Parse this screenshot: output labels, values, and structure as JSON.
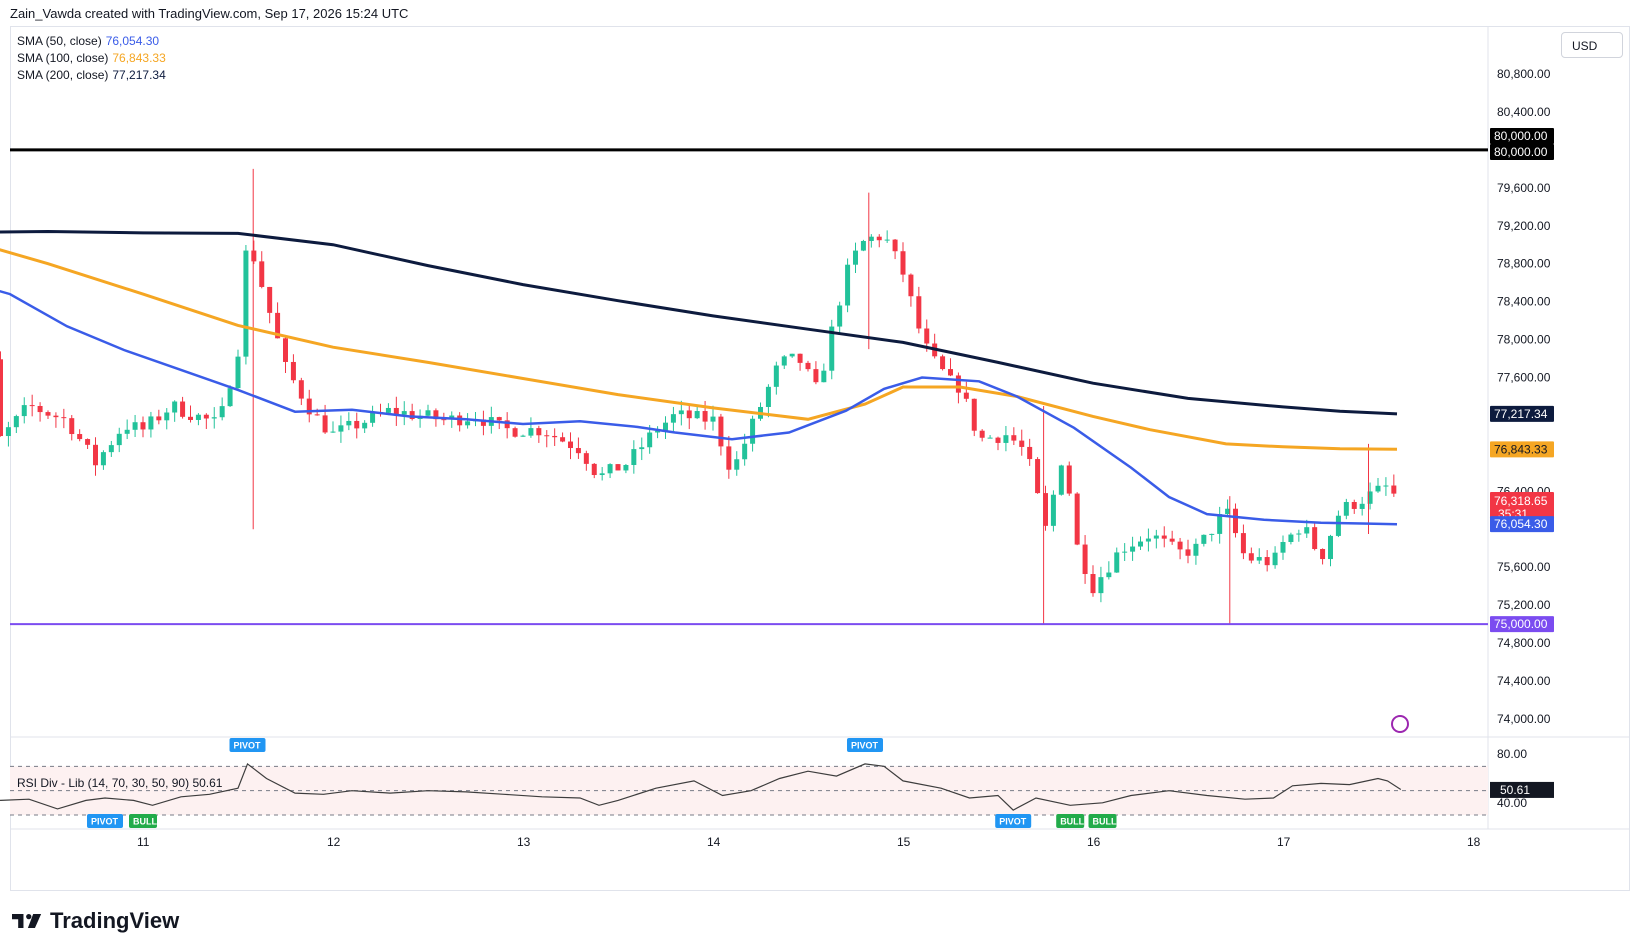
{
  "header": {
    "text": "Zain_Vawda created with TradingView.com, Sep 17, 2026 15:24 UTC"
  },
  "currency": "USD",
  "legend": {
    "sma50": {
      "label": "SMA (50, close)",
      "value": "76,054.30",
      "color": "#3a5ce8"
    },
    "sma100": {
      "label": "SMA (100, close)",
      "value": "76,843.33",
      "color": "#f5a623"
    },
    "sma200": {
      "label": "SMA (200, close)",
      "value": "77,217.34",
      "color": "#0d1b3e"
    }
  },
  "rsi_legend": {
    "label": "RSI Div - Lib (14, 70, 30, 50, 90)",
    "value": "50.61"
  },
  "price_tags": {
    "level80k_a": "80,000.00",
    "level80k_b": "80,000.00",
    "sma200": "77,217.34",
    "sma100": "76,843.33",
    "last": "76,318.65",
    "countdown": "35:31",
    "sma50": "76,054.30",
    "level75k": "75,000.00",
    "rsi": "50.61"
  },
  "colors": {
    "up": "#22c29a",
    "down": "#f23645",
    "sma50": "#3a5ce8",
    "sma100": "#f5a623",
    "sma200": "#0d1b3e",
    "res": "#000000",
    "sup": "#7b4cf0",
    "rsi": "#3d3d3d"
  },
  "footer": {
    "brand": "TradingView"
  },
  "chart_data": {
    "type": "candlestick",
    "title": "",
    "x_ticks": [
      "11",
      "12",
      "13",
      "14",
      "15",
      "16",
      "17",
      "18"
    ],
    "y_ticks": [
      "80,800.00",
      "80,400.00",
      "79,600.00",
      "79,200.00",
      "78,800.00",
      "78,400.00",
      "78,000.00",
      "77,600.00",
      "76,400.00",
      "75,600.00",
      "75,200.00",
      "74,800.00",
      "74,400.00",
      "74,000.00"
    ],
    "ylim": [
      73950,
      81050
    ],
    "horizontal_levels": [
      80000,
      75000
    ],
    "rsi": {
      "ylim": [
        30,
        90
      ],
      "levels": [
        70,
        50,
        30
      ],
      "ticks": [
        "80.00",
        "40.00"
      ],
      "markers": [
        {
          "text": "PIVOT",
          "day": 11.55,
          "pos": "top"
        },
        {
          "text": "PIVOT",
          "day": 14.8,
          "pos": "top"
        },
        {
          "text": "PIVOT",
          "day": 10.8,
          "pos": "bottom"
        },
        {
          "text": "BULL",
          "day": 11.0,
          "pos": "bottom"
        },
        {
          "text": "PIVOT",
          "day": 15.58,
          "pos": "bottom"
        },
        {
          "text": "BULL",
          "day": 15.88,
          "pos": "bottom"
        },
        {
          "text": "BULL",
          "day": 16.05,
          "pos": "bottom"
        }
      ],
      "path": [
        [
          10.0,
          42
        ],
        [
          10.15,
          45
        ],
        [
          10.25,
          42
        ],
        [
          10.4,
          43
        ],
        [
          10.55,
          35
        ],
        [
          10.7,
          42
        ],
        [
          10.8,
          44
        ],
        [
          10.95,
          42
        ],
        [
          11.05,
          38
        ],
        [
          11.2,
          45
        ],
        [
          11.35,
          47
        ],
        [
          11.5,
          52
        ],
        [
          11.55,
          72
        ],
        [
          11.65,
          60
        ],
        [
          11.8,
          48
        ],
        [
          11.95,
          47
        ],
        [
          12.1,
          50
        ],
        [
          12.3,
          48
        ],
        [
          12.5,
          50
        ],
        [
          12.7,
          49
        ],
        [
          12.9,
          47
        ],
        [
          13.1,
          45
        ],
        [
          13.3,
          44
        ],
        [
          13.4,
          38
        ],
        [
          13.5,
          42
        ],
        [
          13.7,
          52
        ],
        [
          13.9,
          58
        ],
        [
          14.05,
          46
        ],
        [
          14.2,
          50
        ],
        [
          14.35,
          60
        ],
        [
          14.5,
          66
        ],
        [
          14.65,
          62
        ],
        [
          14.8,
          72
        ],
        [
          14.9,
          70
        ],
        [
          15.0,
          58
        ],
        [
          15.2,
          52
        ],
        [
          15.35,
          44
        ],
        [
          15.5,
          46
        ],
        [
          15.58,
          34
        ],
        [
          15.7,
          44
        ],
        [
          15.88,
          38
        ],
        [
          16.05,
          40
        ],
        [
          16.2,
          46
        ],
        [
          16.4,
          50
        ],
        [
          16.6,
          46
        ],
        [
          16.8,
          43
        ],
        [
          16.95,
          44
        ],
        [
          17.05,
          54
        ],
        [
          17.2,
          56
        ],
        [
          17.35,
          55
        ],
        [
          17.5,
          60
        ],
        [
          17.55,
          58
        ],
        [
          17.62,
          51
        ]
      ]
    },
    "sma200_path": [
      [
        10.0,
        79130
      ],
      [
        10.5,
        79140
      ],
      [
        11.0,
        79125
      ],
      [
        11.5,
        79120
      ],
      [
        12.0,
        79000
      ],
      [
        12.5,
        78780
      ],
      [
        13.0,
        78580
      ],
      [
        13.5,
        78410
      ],
      [
        14.0,
        78250
      ],
      [
        14.5,
        78110
      ],
      [
        15.0,
        77970
      ],
      [
        15.5,
        77760
      ],
      [
        16.0,
        77540
      ],
      [
        16.5,
        77380
      ],
      [
        17.0,
        77290
      ],
      [
        17.3,
        77245
      ],
      [
        17.6,
        77217
      ]
    ],
    "sma100_path": [
      [
        10.0,
        79090
      ],
      [
        10.5,
        78800
      ],
      [
        11.0,
        78480
      ],
      [
        11.5,
        78150
      ],
      [
        12.0,
        77920
      ],
      [
        12.5,
        77760
      ],
      [
        13.0,
        77590
      ],
      [
        13.5,
        77420
      ],
      [
        14.0,
        77280
      ],
      [
        14.5,
        77160
      ],
      [
        14.8,
        77320
      ],
      [
        15.0,
        77500
      ],
      [
        15.3,
        77500
      ],
      [
        15.6,
        77400
      ],
      [
        16.0,
        77190
      ],
      [
        16.3,
        77050
      ],
      [
        16.7,
        76900
      ],
      [
        17.0,
        76870
      ],
      [
        17.3,
        76850
      ],
      [
        17.6,
        76843
      ]
    ],
    "sma50_path": [
      [
        10.0,
        78650
      ],
      [
        10.3,
        78480
      ],
      [
        10.6,
        78140
      ],
      [
        10.9,
        77890
      ],
      [
        11.2,
        77680
      ],
      [
        11.5,
        77470
      ],
      [
        11.8,
        77240
      ],
      [
        12.1,
        77260
      ],
      [
        12.4,
        77190
      ],
      [
        12.7,
        77160
      ],
      [
        13.0,
        77110
      ],
      [
        13.3,
        77140
      ],
      [
        13.6,
        77080
      ],
      [
        13.8,
        77020
      ],
      [
        14.1,
        76950
      ],
      [
        14.4,
        77020
      ],
      [
        14.7,
        77250
      ],
      [
        14.9,
        77480
      ],
      [
        15.1,
        77600
      ],
      [
        15.4,
        77560
      ],
      [
        15.6,
        77400
      ],
      [
        15.9,
        77070
      ],
      [
        16.2,
        76650
      ],
      [
        16.4,
        76340
      ],
      [
        16.6,
        76160
      ],
      [
        16.9,
        76100
      ],
      [
        17.2,
        76070
      ],
      [
        17.45,
        76060
      ],
      [
        17.6,
        76054
      ]
    ],
    "candles_desc": "approx. hourly candles; generated from a seeded price walk through key points",
    "walk": [
      [
        10.0,
        78300
      ],
      [
        10.2,
        77900
      ],
      [
        10.25,
        76950
      ],
      [
        10.4,
        77300
      ],
      [
        10.6,
        77150
      ],
      [
        10.75,
        76700
      ],
      [
        10.9,
        77100
      ],
      [
        11.0,
        77050
      ],
      [
        11.15,
        77300
      ],
      [
        11.4,
        77100
      ],
      [
        11.5,
        77900
      ],
      [
        11.55,
        79100
      ],
      [
        11.65,
        78400
      ],
      [
        11.75,
        77700
      ],
      [
        11.9,
        77200
      ],
      [
        12.0,
        77000
      ],
      [
        12.3,
        77250
      ],
      [
        12.6,
        77150
      ],
      [
        12.75,
        77200
      ],
      [
        12.9,
        77050
      ],
      [
        13.1,
        77050
      ],
      [
        13.3,
        76850
      ],
      [
        13.4,
        76550
      ],
      [
        13.55,
        76700
      ],
      [
        13.7,
        77050
      ],
      [
        13.8,
        77200
      ],
      [
        14.0,
        77150
      ],
      [
        14.1,
        76600
      ],
      [
        14.25,
        77300
      ],
      [
        14.35,
        77750
      ],
      [
        14.45,
        77800
      ],
      [
        14.55,
        77450
      ],
      [
        14.65,
        78300
      ],
      [
        14.72,
        78800
      ],
      [
        14.8,
        79050
      ],
      [
        14.9,
        79100
      ],
      [
        15.0,
        78700
      ],
      [
        15.1,
        78000
      ],
      [
        15.15,
        77800
      ],
      [
        15.25,
        77550
      ],
      [
        15.3,
        77500
      ],
      [
        15.4,
        76950
      ],
      [
        15.55,
        77000
      ],
      [
        15.65,
        76800
      ],
      [
        15.75,
        76000
      ],
      [
        15.82,
        76600
      ],
      [
        15.85,
        76900
      ],
      [
        15.9,
        75900
      ],
      [
        16.0,
        75400
      ],
      [
        16.15,
        75800
      ],
      [
        16.3,
        75950
      ],
      [
        16.45,
        75750
      ],
      [
        16.55,
        75800
      ],
      [
        16.7,
        76200
      ],
      [
        16.8,
        75700
      ],
      [
        16.95,
        75650
      ],
      [
        17.0,
        75850
      ],
      [
        17.1,
        76050
      ],
      [
        17.2,
        75700
      ],
      [
        17.3,
        76200
      ],
      [
        17.4,
        76300
      ],
      [
        17.5,
        76400
      ],
      [
        17.55,
        76450
      ],
      [
        17.6,
        76320
      ]
    ]
  }
}
